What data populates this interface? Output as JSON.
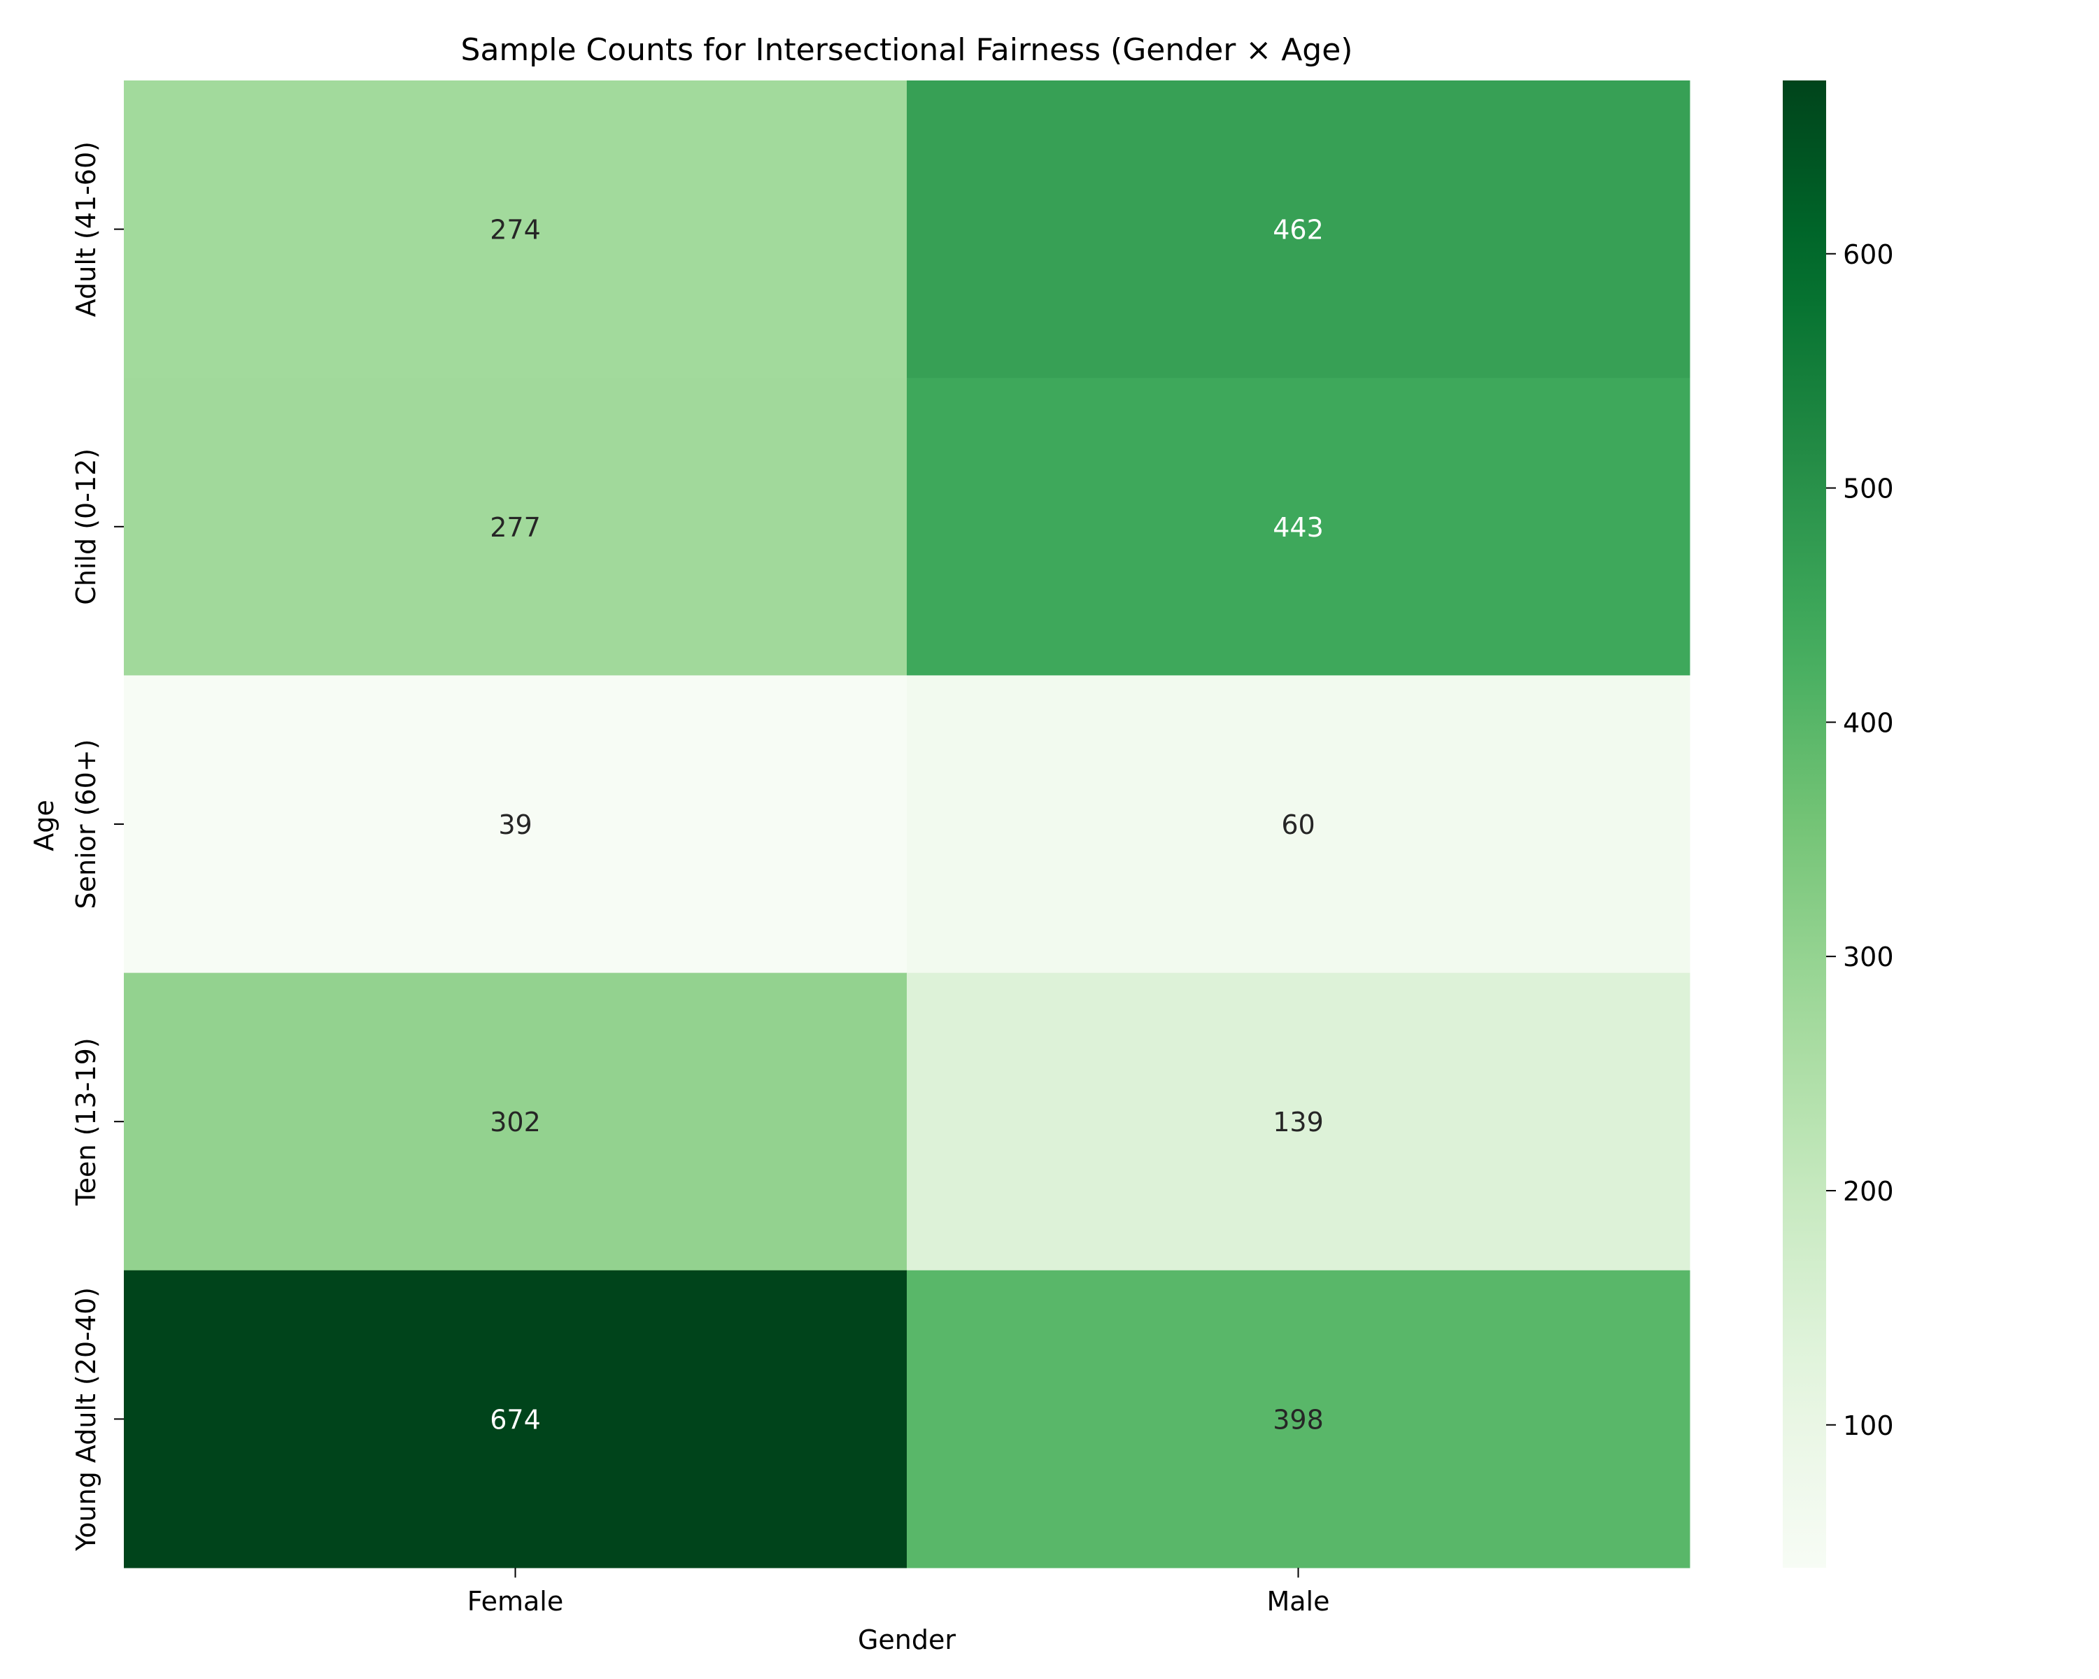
{
  "chart_data": {
    "type": "heatmap",
    "title": "Sample Counts for Intersectional Fairness (Gender × Age)",
    "xlabel": "Gender",
    "ylabel": "Age",
    "x_categories": [
      "Female",
      "Male"
    ],
    "y_categories": [
      "Adult (41-60)",
      "Child (0-12)",
      "Senior (60+)",
      "Teen (13-19)",
      "Young Adult (20-40)"
    ],
    "values": [
      [
        274,
        462
      ],
      [
        277,
        443
      ],
      [
        39,
        60
      ],
      [
        302,
        139
      ],
      [
        674,
        398
      ]
    ],
    "colorbar": {
      "range": [
        39,
        674
      ],
      "ticks": [
        100,
        200,
        300,
        400,
        500,
        600
      ],
      "colormap": "Greens"
    },
    "grid": false,
    "legend": "colorbar-right"
  }
}
